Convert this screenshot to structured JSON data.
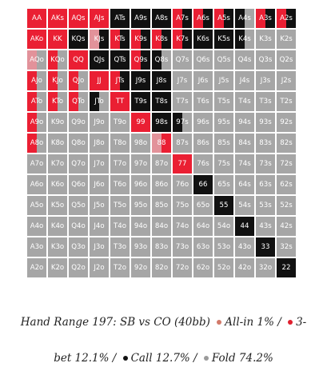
{
  "colors": {
    "allin": "#c71f2d",
    "threebet": "#ea1f33",
    "call": "#111111",
    "fold": "#a6a6a6",
    "threebet_light": "#e2929a",
    "allin_dot": "#d27a6a",
    "threebet_dot": "#e01f2e",
    "call_dot": "#111111",
    "fold_dot": "#9b9b9b"
  },
  "caption": {
    "line1": "Hand Range 197: SB vs CO (40bb)",
    "allin": "All-in 1% /",
    "threebet_line1": "3-",
    "threebet_line2": "bet 12.1% /",
    "call": "Call 12.7% /",
    "fold": "Fold 74.2%"
  },
  "grid": {
    "rows": [
      [
        "AA",
        "AKs",
        "AQs",
        "AJs",
        "ATs",
        "A9s",
        "A8s",
        "A7s",
        "A6s",
        "A5s",
        "A4s",
        "A3s",
        "A2s"
      ],
      [
        "AKo",
        "KK",
        "KQs",
        "KJs",
        "KTs",
        "K9s",
        "K8s",
        "K7s",
        "K6s",
        "K5s",
        "K4s",
        "K3s",
        "K2s"
      ],
      [
        "AQo",
        "KQo",
        "QQ",
        "QJs",
        "QTs",
        "Q9s",
        "Q8s",
        "Q7s",
        "Q6s",
        "Q5s",
        "Q4s",
        "Q3s",
        "Q2s"
      ],
      [
        "AJo",
        "KJo",
        "QJo",
        "JJ",
        "JTs",
        "J9s",
        "J8s",
        "J7s",
        "J6s",
        "J5s",
        "J4s",
        "J3s",
        "J2s"
      ],
      [
        "ATo",
        "KTo",
        "QTo",
        "JTo",
        "TT",
        "T9s",
        "T8s",
        "T7s",
        "T6s",
        "T5s",
        "T4s",
        "T3s",
        "T2s"
      ],
      [
        "A9o",
        "K9o",
        "Q9o",
        "J9o",
        "T9o",
        "99",
        "98s",
        "97s",
        "96s",
        "95s",
        "94s",
        "93s",
        "92s"
      ],
      [
        "A8o",
        "K8o",
        "Q8o",
        "J8o",
        "T8o",
        "98o",
        "88",
        "87s",
        "86s",
        "85s",
        "84s",
        "83s",
        "82s"
      ],
      [
        "A7o",
        "K7o",
        "Q7o",
        "J7o",
        "T7o",
        "97o",
        "87o",
        "77",
        "76s",
        "75s",
        "74s",
        "73s",
        "72s"
      ],
      [
        "A6o",
        "K6o",
        "Q6o",
        "J6o",
        "T6o",
        "96o",
        "86o",
        "76o",
        "66",
        "65s",
        "64s",
        "63s",
        "62s"
      ],
      [
        "A5o",
        "K5o",
        "Q5o",
        "J5o",
        "T5o",
        "95o",
        "85o",
        "75o",
        "65o",
        "55",
        "54s",
        "53s",
        "52s"
      ],
      [
        "A4o",
        "K4o",
        "Q4o",
        "J4o",
        "T4o",
        "94o",
        "84o",
        "74o",
        "64o",
        "54o",
        "44",
        "43s",
        "42s"
      ],
      [
        "A3o",
        "K3o",
        "Q3o",
        "J3o",
        "T3o",
        "93o",
        "83o",
        "73o",
        "63o",
        "53o",
        "43o",
        "33",
        "32s"
      ],
      [
        "A2o",
        "K2o",
        "Q2o",
        "J2o",
        "T2o",
        "92o",
        "82o",
        "72o",
        "62o",
        "52o",
        "42o",
        "32o",
        "22"
      ]
    ],
    "actions": [
      [
        [
          "threebet"
        ],
        [
          "threebet"
        ],
        [
          "threebet"
        ],
        [
          "threebet"
        ],
        [
          "call"
        ],
        [
          "call"
        ],
        [
          "call"
        ],
        [
          "threebet",
          "call"
        ],
        [
          "threebet",
          "call"
        ],
        [
          "threebet",
          "call"
        ],
        [
          "call",
          "fold"
        ],
        [
          "threebet",
          "call"
        ],
        [
          "threebet",
          "call"
        ]
      ],
      [
        [
          "threebet"
        ],
        [
          "threebet"
        ],
        [
          "call"
        ],
        [
          "threebet_light",
          "call"
        ],
        [
          "threebet",
          "call"
        ],
        [
          "threebet",
          "call"
        ],
        [
          "threebet",
          "call"
        ],
        [
          "threebet",
          "call"
        ],
        [
          "call"
        ],
        [
          "call"
        ],
        [
          "call",
          "fold"
        ],
        [
          "fold"
        ],
        [
          "fold"
        ]
      ],
      [
        [
          "threebet_light",
          "fold"
        ],
        [
          "threebet",
          "fold"
        ],
        [
          "threebet"
        ],
        [
          "call"
        ],
        [
          "call"
        ],
        [
          "threebet",
          "call"
        ],
        [
          "call",
          "fold"
        ],
        [
          "fold"
        ],
        [
          "fold"
        ],
        [
          "fold"
        ],
        [
          "fold"
        ],
        [
          "fold"
        ],
        [
          "fold"
        ]
      ],
      [
        [
          "threebet",
          "fold"
        ],
        [
          "threebet",
          "fold"
        ],
        [
          "threebet",
          "fold"
        ],
        [
          "threebet"
        ],
        [
          "threebet",
          "call"
        ],
        [
          "call"
        ],
        [
          "call"
        ],
        [
          "fold"
        ],
        [
          "fold"
        ],
        [
          "fold"
        ],
        [
          "fold"
        ],
        [
          "fold"
        ],
        [
          "fold"
        ]
      ],
      [
        [
          "threebet",
          "fold"
        ],
        [
          "threebet",
          "fold"
        ],
        [
          "threebet",
          "fold"
        ],
        [
          "call",
          "fold"
        ],
        [
          "threebet"
        ],
        [
          "call"
        ],
        [
          "call"
        ],
        [
          "fold"
        ],
        [
          "fold"
        ],
        [
          "fold"
        ],
        [
          "fold"
        ],
        [
          "fold"
        ],
        [
          "fold"
        ]
      ],
      [
        [
          "threebet",
          "fold"
        ],
        [
          "fold"
        ],
        [
          "fold"
        ],
        [
          "fold"
        ],
        [
          "fold"
        ],
        [
          "threebet"
        ],
        [
          "call"
        ],
        [
          "call",
          "fold"
        ],
        [
          "fold"
        ],
        [
          "fold"
        ],
        [
          "fold"
        ],
        [
          "fold"
        ],
        [
          "fold"
        ]
      ],
      [
        [
          "threebet",
          "fold"
        ],
        [
          "fold"
        ],
        [
          "fold"
        ],
        [
          "fold"
        ],
        [
          "fold"
        ],
        [
          "fold"
        ],
        [
          "threebet_light",
          "threebet"
        ],
        [
          "fold"
        ],
        [
          "fold"
        ],
        [
          "fold"
        ],
        [
          "fold"
        ],
        [
          "fold"
        ],
        [
          "fold"
        ]
      ],
      [
        [
          "fold"
        ],
        [
          "fold"
        ],
        [
          "fold"
        ],
        [
          "fold"
        ],
        [
          "fold"
        ],
        [
          "fold"
        ],
        [
          "fold"
        ],
        [
          "threebet"
        ],
        [
          "fold"
        ],
        [
          "fold"
        ],
        [
          "fold"
        ],
        [
          "fold"
        ],
        [
          "fold"
        ]
      ],
      [
        [
          "fold"
        ],
        [
          "fold"
        ],
        [
          "fold"
        ],
        [
          "fold"
        ],
        [
          "fold"
        ],
        [
          "fold"
        ],
        [
          "fold"
        ],
        [
          "fold"
        ],
        [
          "call"
        ],
        [
          "fold"
        ],
        [
          "fold"
        ],
        [
          "fold"
        ],
        [
          "fold"
        ]
      ],
      [
        [
          "fold"
        ],
        [
          "fold"
        ],
        [
          "fold"
        ],
        [
          "fold"
        ],
        [
          "fold"
        ],
        [
          "fold"
        ],
        [
          "fold"
        ],
        [
          "fold"
        ],
        [
          "fold"
        ],
        [
          "call"
        ],
        [
          "fold"
        ],
        [
          "fold"
        ],
        [
          "fold"
        ]
      ],
      [
        [
          "fold"
        ],
        [
          "fold"
        ],
        [
          "fold"
        ],
        [
          "fold"
        ],
        [
          "fold"
        ],
        [
          "fold"
        ],
        [
          "fold"
        ],
        [
          "fold"
        ],
        [
          "fold"
        ],
        [
          "fold"
        ],
        [
          "call"
        ],
        [
          "fold"
        ],
        [
          "fold"
        ]
      ],
      [
        [
          "fold"
        ],
        [
          "fold"
        ],
        [
          "fold"
        ],
        [
          "fold"
        ],
        [
          "fold"
        ],
        [
          "fold"
        ],
        [
          "fold"
        ],
        [
          "fold"
        ],
        [
          "fold"
        ],
        [
          "fold"
        ],
        [
          "fold"
        ],
        [
          "call"
        ],
        [
          "fold"
        ]
      ],
      [
        [
          "fold"
        ],
        [
          "fold"
        ],
        [
          "fold"
        ],
        [
          "fold"
        ],
        [
          "fold"
        ],
        [
          "fold"
        ],
        [
          "fold"
        ],
        [
          "fold"
        ],
        [
          "fold"
        ],
        [
          "fold"
        ],
        [
          "fold"
        ],
        [
          "fold"
        ],
        [
          "call"
        ]
      ]
    ]
  }
}
